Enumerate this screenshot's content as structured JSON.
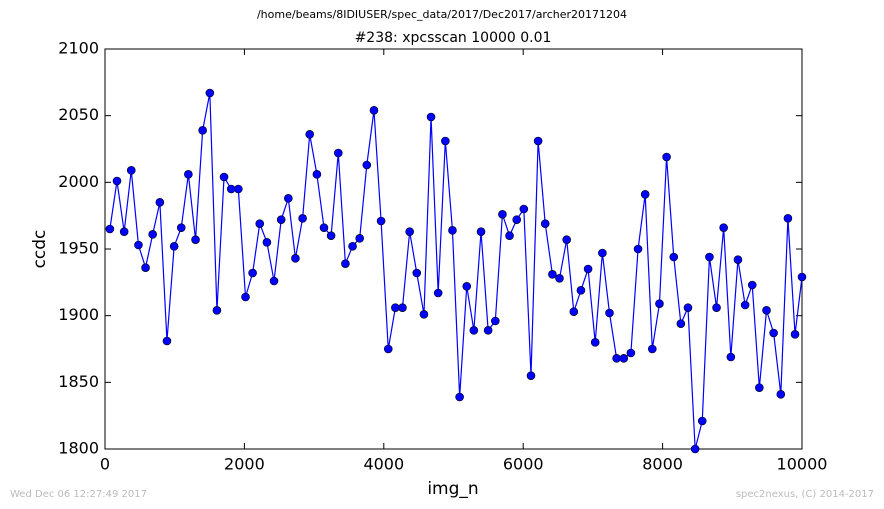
{
  "chart_data": {
    "type": "line",
    "suptitle": "/home/beams/8IDIUSER/spec_data/2017/Dec2017/archer20171204",
    "title": "#238: xpcsscan 10000 0.01",
    "xlabel": "img_n",
    "ylabel": "ccdc",
    "timestamp": "Wed Dec 06 12:27:49 2017",
    "credit": "spec2nexus, (C) 2014-2017",
    "xlim": [
      0,
      10000
    ],
    "xticks": [
      0,
      2000,
      4000,
      6000,
      8000,
      10000
    ],
    "ylim": [
      1800,
      2100
    ],
    "yticks": [
      1800,
      1850,
      1900,
      1950,
      2000,
      2050,
      2100
    ],
    "x": [
      70,
      172,
      275,
      377,
      480,
      582,
      684,
      787,
      889,
      992,
      1094,
      1196,
      1299,
      1401,
      1504,
      1606,
      1708,
      1811,
      1913,
      2016,
      2118,
      2220,
      2323,
      2425,
      2528,
      2630,
      2732,
      2835,
      2937,
      3040,
      3142,
      3244,
      3347,
      3449,
      3552,
      3654,
      3756,
      3859,
      3961,
      4064,
      4166,
      4268,
      4371,
      4473,
      4576,
      4678,
      4780,
      4883,
      4985,
      5088,
      5190,
      5292,
      5395,
      5497,
      5600,
      5702,
      5804,
      5907,
      6009,
      6112,
      6214,
      6316,
      6419,
      6521,
      6624,
      6726,
      6828,
      6931,
      7033,
      7136,
      7238,
      7340,
      7443,
      7545,
      7648,
      7750,
      7852,
      7955,
      8057,
      8160,
      8262,
      8364,
      8467,
      8569,
      8672,
      8774,
      8876,
      8979,
      9081,
      9184,
      9286,
      9388,
      9491,
      9593,
      9696,
      9798,
      9900,
      10000
    ],
    "series": [
      {
        "color": "#0000ff",
        "values": [
          1965,
          2001,
          1963,
          2009,
          1953,
          1936,
          1961,
          1985,
          1881,
          1952,
          1966,
          2006,
          1957,
          2039,
          2067,
          1904,
          2004,
          1995,
          1995,
          1914,
          1932,
          1969,
          1955,
          1926,
          1972,
          1988,
          1943,
          1973,
          2036,
          2006,
          1966,
          1960,
          2022,
          1939,
          1952,
          1958,
          2013,
          2054,
          1971,
          1875,
          1906,
          1906,
          1963,
          1932,
          1901,
          2049,
          1917,
          2031,
          1964,
          1839,
          1922,
          1889,
          1963,
          1889,
          1896,
          1976,
          1960,
          1972,
          1980,
          1855,
          2031,
          1969,
          1931,
          1928,
          1957,
          1903,
          1919,
          1935,
          1880,
          1947,
          1902,
          1868,
          1868,
          1872,
          1950,
          1991,
          1875,
          1909,
          2019,
          1944,
          1894,
          1906,
          1800,
          1821,
          1944,
          1906,
          1966,
          1869,
          1942,
          1908,
          1923,
          1846,
          1904,
          1887,
          1841,
          1973,
          1886,
          1929
        ]
      }
    ]
  }
}
